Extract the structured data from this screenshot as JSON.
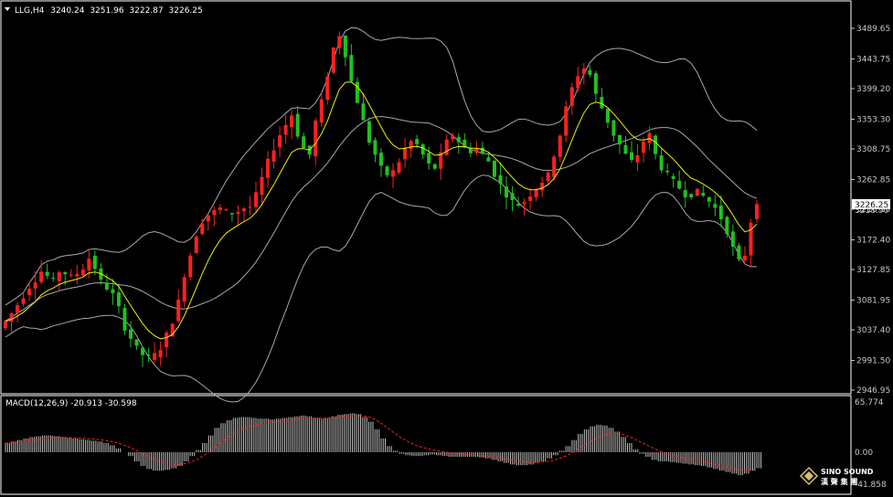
{
  "chart_data": [
    {
      "type": "candlestick",
      "header": "LLG,H4",
      "ohlc": [
        "3240.24",
        "3251.96",
        "3222.87",
        "3226.25"
      ],
      "last_price": "3226.25",
      "second_price": "3218.90",
      "y_ticks": [
        "3489.65",
        "3443.75",
        "3399.20",
        "3353.30",
        "3308.75",
        "3262.85",
        "3218.30",
        "3172.40",
        "3127.85",
        "3081.95",
        "3037.40",
        "2991.50",
        "2946.95"
      ],
      "y_tick_values": [
        3489.65,
        3443.75,
        3399.2,
        3353.3,
        3308.75,
        3262.85,
        3218.3,
        3172.4,
        3127.85,
        3081.95,
        3037.4,
        2991.5,
        2946.95
      ],
      "ylim": [
        2946.95,
        3515
      ],
      "overlays": [
        "Bollinger Bands",
        "Moving Average"
      ],
      "colors": {
        "up": "#ff2020",
        "down": "#22c022",
        "bands": "#a8a8a8",
        "ma": "#f0f000",
        "background": "#000000",
        "frame": "#ffffff"
      },
      "close_path": [
        3050,
        3062,
        3075,
        3088,
        3102,
        3112,
        3125,
        3118,
        3110,
        3125,
        3122,
        3117,
        3122,
        3130,
        3145,
        3130,
        3110,
        3100,
        3090,
        3070,
        3040,
        3025,
        3010,
        3000,
        2995,
        3000,
        3010,
        3030,
        3050,
        3080,
        3120,
        3150,
        3180,
        3200,
        3210,
        3215,
        3220,
        3215,
        3212,
        3215,
        3220,
        3222,
        3240,
        3265,
        3290,
        3310,
        3330,
        3345,
        3360,
        3330,
        3310,
        3300,
        3350,
        3380,
        3420,
        3460,
        3480,
        3450,
        3410,
        3380,
        3350,
        3320,
        3300,
        3280,
        3270,
        3275,
        3290,
        3310,
        3320,
        3315,
        3300,
        3285,
        3280,
        3300,
        3320,
        3330,
        3320,
        3310,
        3305,
        3310,
        3300,
        3290,
        3270,
        3255,
        3240,
        3230,
        3225,
        3230,
        3240,
        3250,
        3260,
        3270,
        3300,
        3330,
        3370,
        3400,
        3420,
        3430,
        3420,
        3390,
        3370,
        3350,
        3330,
        3315,
        3300,
        3290,
        3300,
        3320,
        3330,
        3300,
        3280,
        3270,
        3260,
        3250,
        3240,
        3240,
        3245,
        3238,
        3230,
        3220,
        3205,
        3185,
        3160,
        3140,
        3150,
        3200,
        3230
      ]
    },
    {
      "type": "bar",
      "header": "MACD(12,26,9) -20.913 -30.598",
      "y_ticks": [
        "65.774",
        "0.00",
        "-41.858"
      ],
      "y_tick_values": [
        65.774,
        0,
        -41.858
      ],
      "ylim": [
        -41.858,
        65.774
      ],
      "colors": {
        "histogram": "#c0c0c0",
        "signal": "#ff2020"
      },
      "histogram": [
        12,
        14,
        16,
        18,
        20,
        21,
        22,
        22,
        21,
        20,
        19,
        18,
        17,
        16,
        15,
        14,
        12,
        9,
        5,
        0,
        -5,
        -12,
        -18,
        -22,
        -24,
        -24,
        -23,
        -21,
        -18,
        -12,
        -5,
        3,
        12,
        22,
        32,
        38,
        42,
        45,
        46,
        46,
        45,
        44,
        44,
        43,
        44,
        45,
        46,
        47,
        48,
        47,
        45,
        44,
        45,
        47,
        49,
        50,
        51,
        50,
        46,
        40,
        30,
        18,
        8,
        2,
        -2,
        -4,
        -5,
        -5,
        -4,
        -3,
        -4,
        -5,
        -6,
        -6,
        -6,
        -6,
        -6,
        -7,
        -8,
        -10,
        -12,
        -14,
        -16,
        -17,
        -17,
        -16,
        -14,
        -12,
        -8,
        -4,
        2,
        8,
        16,
        24,
        30,
        34,
        36,
        35,
        32,
        27,
        20,
        12,
        4,
        -2,
        -6,
        -10,
        -12,
        -12,
        -13,
        -14,
        -15,
        -16,
        -17,
        -18,
        -20,
        -22,
        -24,
        -26,
        -28,
        -30,
        -28,
        -24,
        -21
      ]
    }
  ],
  "logo": {
    "line1": "SINO SOUND",
    "line2": "漢 聲 集 團"
  }
}
